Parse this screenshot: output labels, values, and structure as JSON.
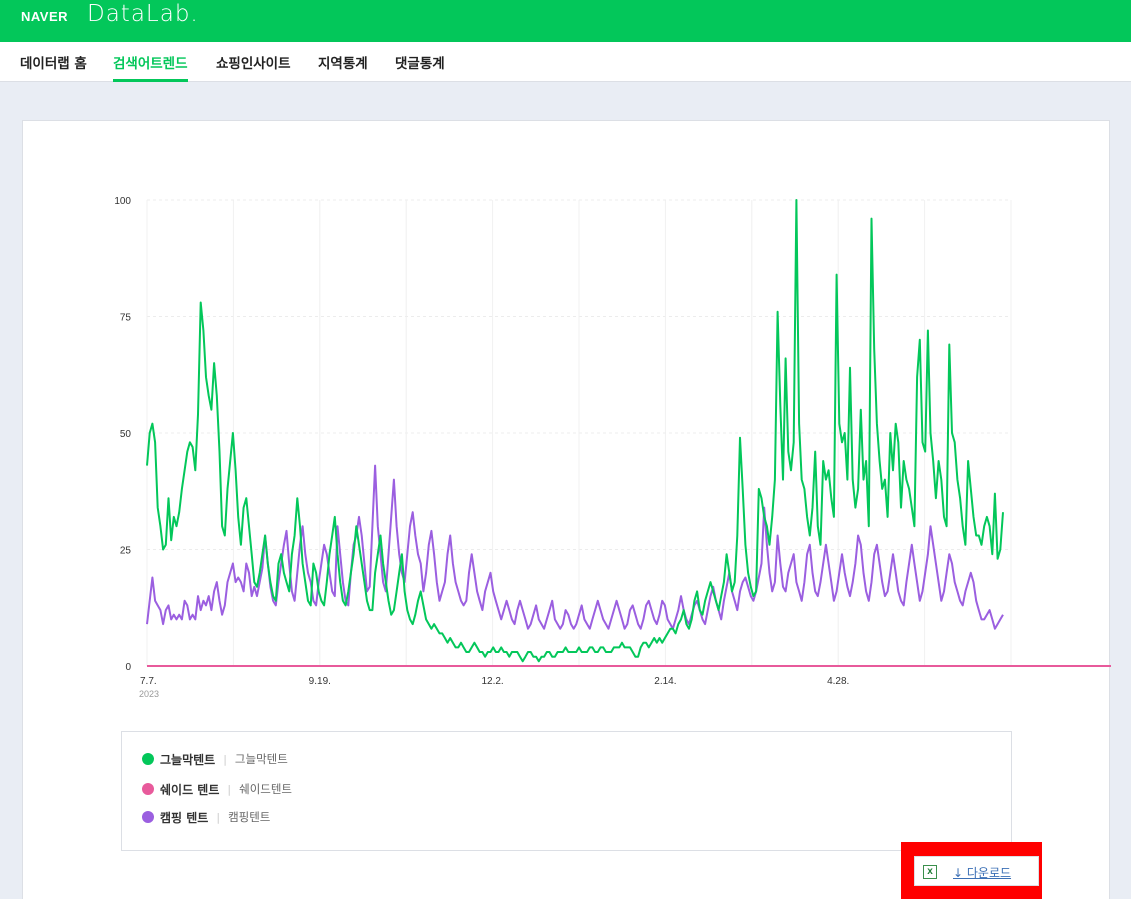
{
  "header": {
    "naver": "NAVER",
    "datalab": "DataLab."
  },
  "nav": {
    "items": [
      {
        "label": "데이터랩 홈",
        "active": false
      },
      {
        "label": "검색어트렌드",
        "active": true
      },
      {
        "label": "쇼핑인사이트",
        "active": false
      },
      {
        "label": "지역통계",
        "active": false
      },
      {
        "label": "댓글통계",
        "active": false
      }
    ]
  },
  "chart_data": {
    "type": "line",
    "ylim": [
      0,
      100
    ],
    "yticks": [
      "100",
      "75",
      "50",
      "25",
      "0"
    ],
    "xticks": [
      "7.7.",
      "9.19.",
      "12.2.",
      "2.14.",
      "4.28."
    ],
    "x_year_label": "2023",
    "grid": true,
    "series": [
      {
        "name": "그늘막텐트",
        "color": "#03c75a",
        "values": [
          43,
          50,
          52,
          48,
          34,
          30,
          25,
          26,
          36,
          27,
          32,
          30,
          33,
          38,
          42,
          46,
          48,
          47,
          42,
          54,
          78,
          72,
          62,
          58,
          55,
          65,
          58,
          46,
          30,
          28,
          38,
          44,
          50,
          42,
          32,
          26,
          34,
          36,
          30,
          24,
          18,
          17,
          20,
          24,
          28,
          22,
          18,
          15,
          14,
          22,
          24,
          20,
          18,
          16,
          24,
          28,
          36,
          30,
          22,
          18,
          14,
          13,
          22,
          20,
          16,
          14,
          13,
          18,
          24,
          28,
          32,
          24,
          18,
          14,
          13,
          16,
          20,
          24,
          30,
          26,
          22,
          18,
          14,
          12,
          12,
          20,
          24,
          28,
          22,
          18,
          14,
          11,
          12,
          16,
          20,
          24,
          16,
          12,
          10,
          9,
          11,
          14,
          16,
          13,
          10,
          9,
          8,
          9,
          8,
          7,
          7,
          6,
          5,
          6,
          5,
          4,
          4,
          5,
          4,
          3,
          3,
          4,
          5,
          4,
          3,
          3,
          2,
          3,
          3,
          4,
          3,
          3,
          4,
          3,
          3,
          2,
          3,
          3,
          3,
          2,
          1,
          2,
          3,
          3,
          2,
          2,
          1,
          2,
          2,
          3,
          3,
          2,
          2,
          3,
          3,
          3,
          4,
          3,
          3,
          3,
          3,
          4,
          3,
          3,
          3,
          4,
          4,
          3,
          3,
          4,
          4,
          3,
          3,
          3,
          4,
          4,
          4,
          5,
          4,
          4,
          4,
          3,
          2,
          2,
          4,
          5,
          5,
          4,
          5,
          6,
          5,
          6,
          5,
          6,
          7,
          8,
          8,
          7,
          9,
          10,
          12,
          9,
          8,
          10,
          14,
          16,
          12,
          11,
          14,
          16,
          18,
          16,
          14,
          12,
          15,
          18,
          24,
          20,
          16,
          18,
          28,
          49,
          38,
          26,
          20,
          17,
          15,
          16,
          38,
          36,
          32,
          30,
          26,
          32,
          40,
          76,
          56,
          40,
          66,
          46,
          42,
          48,
          100,
          52,
          40,
          38,
          32,
          28,
          34,
          46,
          30,
          26,
          44,
          40,
          42,
          36,
          32,
          84,
          52,
          48,
          50,
          40,
          64,
          40,
          34,
          38,
          55,
          40,
          44,
          30,
          96,
          68,
          52,
          44,
          38,
          40,
          32,
          50,
          42,
          52,
          48,
          34,
          44,
          40,
          38,
          34,
          30,
          62,
          70,
          48,
          46,
          72,
          50,
          44,
          36,
          44,
          40,
          32,
          30,
          69,
          50,
          48,
          40,
          36,
          30,
          26,
          44,
          38,
          32,
          28,
          28,
          26,
          30,
          32,
          30,
          24,
          37,
          23,
          25,
          33
        ]
      },
      {
        "name": "쉐이드 텐트",
        "color": "#e85a9b",
        "values": [
          0,
          0,
          0,
          0,
          0,
          0,
          0,
          0,
          0,
          0,
          0,
          0,
          0,
          0,
          0,
          0,
          0,
          0,
          0,
          0,
          0,
          0,
          0,
          0,
          0,
          0,
          0,
          0,
          0,
          0,
          0,
          0,
          0,
          0,
          0,
          0,
          0,
          0,
          0,
          0,
          0,
          0,
          0,
          0,
          0,
          0,
          0,
          0,
          0,
          0,
          0,
          0,
          0,
          0,
          0,
          0,
          0,
          0,
          0,
          0,
          0,
          0,
          0,
          0,
          0,
          0,
          0,
          0,
          0,
          0,
          0,
          0,
          0,
          0,
          0,
          0,
          0,
          0,
          0,
          0,
          0,
          0,
          0,
          0,
          0,
          0,
          0,
          0,
          0,
          0,
          0,
          0,
          0,
          0,
          0,
          0,
          0,
          0,
          0,
          0,
          0,
          0,
          0,
          0,
          0,
          0,
          0,
          0,
          0,
          0,
          0,
          0,
          0,
          0,
          0,
          0,
          0,
          0,
          0,
          0,
          0,
          0,
          0,
          0,
          0,
          0,
          0,
          0,
          0,
          0,
          0,
          0,
          0,
          0,
          0,
          0,
          0,
          0,
          0,
          0,
          0,
          0,
          0,
          0,
          0,
          0,
          0,
          0,
          0,
          0,
          0,
          0,
          0,
          0,
          0,
          0,
          0,
          0,
          0,
          0,
          0,
          0,
          0,
          0,
          0,
          0,
          0,
          0,
          0,
          0,
          0,
          0,
          0,
          0,
          0,
          0,
          0,
          0,
          0,
          0,
          0,
          0,
          0,
          0,
          0,
          0,
          0,
          0,
          0,
          0,
          0,
          0,
          0,
          0,
          0,
          0,
          0,
          0,
          0,
          0,
          0,
          0,
          0,
          0,
          0,
          0,
          0,
          0,
          0,
          0,
          0,
          0,
          0,
          0,
          0,
          0,
          0,
          0,
          0,
          0,
          0,
          0,
          0,
          0,
          0,
          0,
          0,
          0,
          0,
          0,
          0,
          0,
          0,
          0,
          0,
          0,
          0,
          0,
          0,
          0,
          0,
          0,
          0,
          0,
          0,
          0,
          0,
          0,
          0,
          0,
          0,
          0,
          0,
          0,
          0,
          0,
          0,
          0,
          0,
          0,
          0,
          0,
          0,
          0,
          0,
          0,
          0,
          0,
          0,
          0,
          0,
          0,
          0,
          0,
          0,
          0,
          0,
          0,
          0,
          0,
          0,
          0,
          0,
          0,
          0,
          0,
          0,
          0,
          0,
          0,
          0,
          0,
          0,
          0,
          0,
          0,
          0,
          0,
          0,
          0,
          0,
          0,
          0,
          0,
          0,
          0,
          0,
          0,
          0,
          0,
          0,
          0,
          0,
          0,
          0,
          0,
          0,
          0,
          0,
          0,
          0,
          0,
          0,
          0,
          0,
          0,
          0,
          0,
          0,
          0,
          0,
          0,
          0,
          0,
          0,
          0,
          0,
          0,
          0,
          0,
          0,
          0,
          0,
          0,
          0,
          0,
          0,
          0,
          0,
          0,
          0,
          0,
          0,
          0,
          0,
          0,
          0,
          0,
          0,
          0,
          0,
          0,
          0,
          0,
          0,
          0,
          0
        ]
      },
      {
        "name": "캠핑 텐트",
        "color": "#9b5fe0",
        "values": [
          9,
          14,
          19,
          14,
          13,
          12,
          9,
          12,
          13,
          10,
          11,
          10,
          11,
          10,
          14,
          13,
          10,
          11,
          10,
          15,
          12,
          14,
          13,
          15,
          12,
          16,
          18,
          14,
          11,
          13,
          18,
          20,
          22,
          18,
          19,
          18,
          16,
          22,
          20,
          15,
          17,
          15,
          18,
          21,
          28,
          22,
          17,
          14,
          13,
          18,
          22,
          26,
          29,
          22,
          16,
          14,
          20,
          26,
          30,
          24,
          20,
          18,
          14,
          13,
          18,
          22,
          26,
          24,
          20,
          16,
          15,
          30,
          24,
          18,
          14,
          13,
          20,
          26,
          28,
          32,
          28,
          22,
          16,
          17,
          30,
          43,
          30,
          24,
          18,
          16,
          24,
          32,
          40,
          30,
          24,
          20,
          18,
          24,
          30,
          33,
          28,
          24,
          22,
          16,
          20,
          26,
          29,
          24,
          18,
          14,
          16,
          18,
          24,
          28,
          22,
          18,
          16,
          14,
          13,
          14,
          20,
          24,
          20,
          16,
          14,
          12,
          16,
          18,
          20,
          16,
          14,
          12,
          10,
          12,
          14,
          12,
          10,
          9,
          12,
          14,
          12,
          10,
          8,
          9,
          11,
          13,
          10,
          9,
          8,
          10,
          12,
          14,
          10,
          9,
          8,
          9,
          12,
          11,
          9,
          8,
          9,
          11,
          13,
          10,
          9,
          8,
          10,
          12,
          14,
          12,
          10,
          9,
          8,
          10,
          12,
          14,
          12,
          10,
          8,
          9,
          12,
          13,
          11,
          9,
          8,
          10,
          13,
          14,
          12,
          10,
          9,
          11,
          14,
          13,
          10,
          9,
          8,
          10,
          12,
          15,
          12,
          10,
          9,
          11,
          13,
          14,
          12,
          10,
          9,
          12,
          15,
          17,
          14,
          12,
          10,
          14,
          17,
          20,
          16,
          14,
          12,
          16,
          18,
          19,
          17,
          15,
          14,
          16,
          19,
          22,
          34,
          26,
          20,
          16,
          18,
          28,
          22,
          17,
          16,
          20,
          22,
          24,
          18,
          16,
          14,
          18,
          24,
          26,
          20,
          16,
          15,
          18,
          22,
          26,
          22,
          18,
          14,
          16,
          20,
          24,
          20,
          17,
          15,
          18,
          22,
          28,
          26,
          20,
          16,
          14,
          18,
          24,
          26,
          22,
          18,
          15,
          16,
          20,
          24,
          20,
          16,
          14,
          13,
          18,
          22,
          26,
          22,
          18,
          14,
          16,
          20,
          24,
          30,
          26,
          22,
          18,
          14,
          16,
          20,
          24,
          22,
          18,
          16,
          14,
          13,
          16,
          18,
          20,
          18,
          14,
          12,
          10,
          10,
          11,
          12,
          10,
          8,
          9,
          10,
          11
        ]
      }
    ]
  },
  "legend": {
    "entries": [
      {
        "name": "그늘막텐트",
        "keyword": "그늘막텐트",
        "color": "#03c75a"
      },
      {
        "name": "쉐이드 텐트",
        "keyword": "쉐이드텐트",
        "color": "#e85a9b"
      },
      {
        "name": "캠핑 텐트",
        "keyword": "캠핑텐트",
        "color": "#9b5fe0"
      }
    ]
  },
  "download": {
    "icon": "excel-icon",
    "icon_glyph": "x",
    "label": "↓ 다운로드",
    "highlight_color": "#ff0000"
  }
}
